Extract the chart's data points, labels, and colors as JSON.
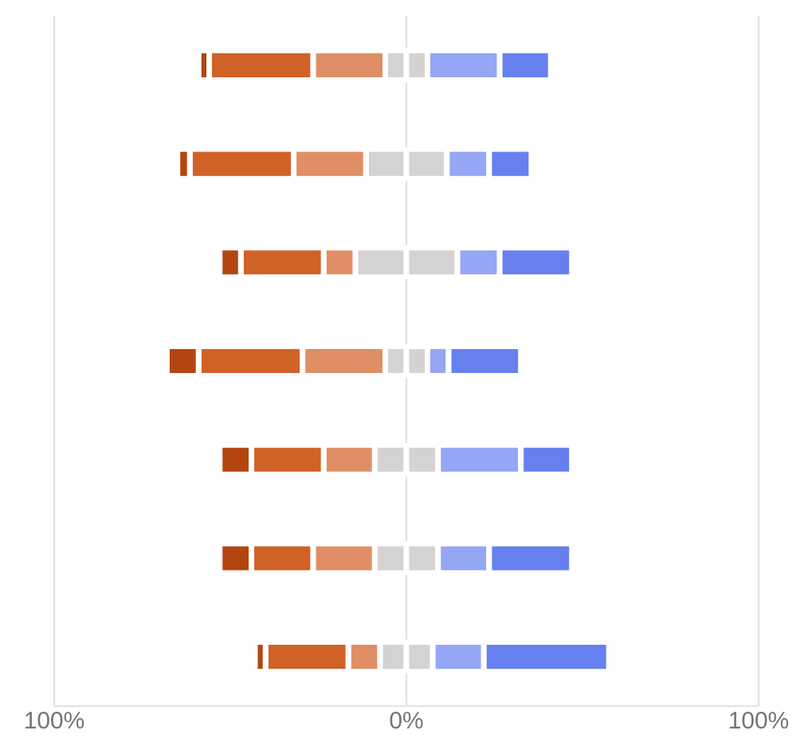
{
  "chart_data": {
    "type": "bar",
    "orientation": "horizontal",
    "stacked": true,
    "categories": [
      null,
      null,
      null,
      null,
      null,
      null,
      null
    ],
    "series": [
      {
        "color": "#d4d3d1",
        "values": [
          -6,
          -11.5,
          -14.5,
          -6,
          -9,
          -9,
          -7.5
        ]
      },
      {
        "color": "#e08e65",
        "values": [
          -20.5,
          -20.5,
          -9,
          -23.5,
          -14.5,
          -17.5,
          -9
        ]
      },
      {
        "color": "#d06127",
        "values": [
          -29.5,
          -29.5,
          -23.5,
          -29.5,
          -20.5,
          -17.5,
          -23.5
        ]
      },
      {
        "color": "#b34510",
        "values": [
          -3,
          -3.5,
          -6,
          -9,
          -9,
          -9,
          -3
        ]
      },
      {
        "color": "#d4d3d1",
        "values": [
          6,
          11.5,
          14.5,
          6,
          9,
          9,
          7.5
        ]
      },
      {
        "color": "#94a6f4",
        "values": [
          20.5,
          12,
          12,
          6,
          23.5,
          14.5,
          14.5
        ]
      },
      {
        "color": "#6680f0",
        "values": [
          14.5,
          12,
          20.5,
          20.5,
          14.5,
          23.5,
          35.5
        ]
      }
    ],
    "xlim": [
      -100,
      100
    ],
    "xticks": [
      {
        "value": -100,
        "label": "100%"
      },
      {
        "value": 0,
        "label": "0%"
      },
      {
        "value": 100,
        "label": "100%"
      }
    ],
    "grid": "x"
  }
}
